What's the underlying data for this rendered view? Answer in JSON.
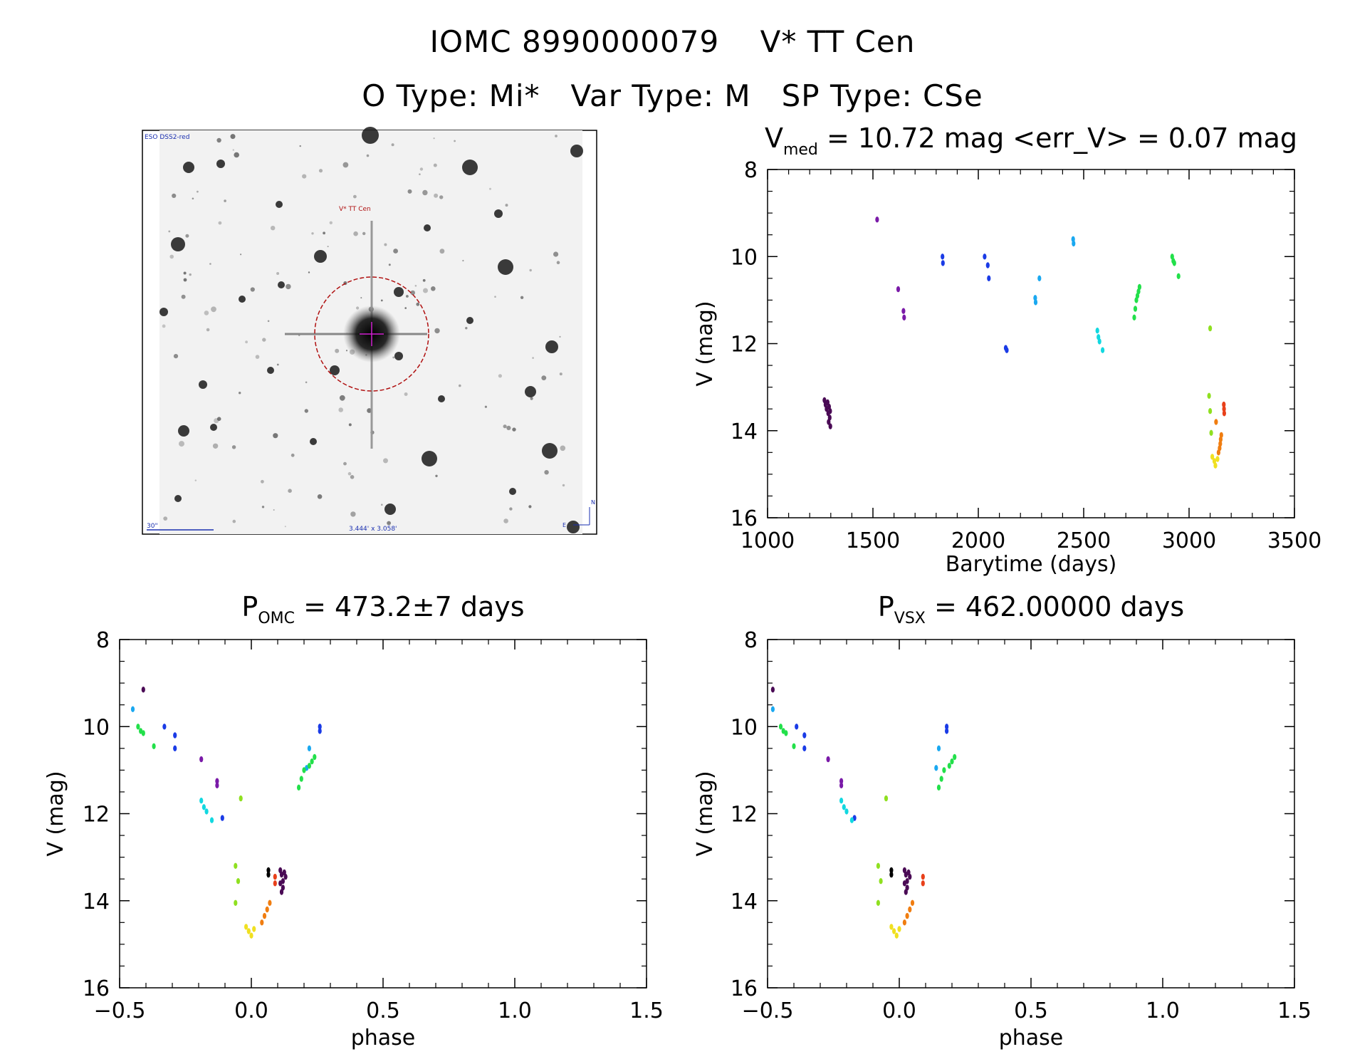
{
  "header": {
    "title_line1": "IOMC 8990000079    V* TT Cen",
    "title_line2": "O Type: Mi*   Var Type: M   SP Type: CSe"
  },
  "thumbnail": {
    "survey_label": "ESO DSS2-red",
    "target_label": "V* TT Cen",
    "scale_label": "30\"",
    "size_label": "3.444' x 3.058'",
    "north_label": "N",
    "east_label": "E"
  },
  "colors": {
    "purple_dark": "#4a0a55",
    "purple": "#7a1aa8",
    "blue": "#1a3be6",
    "sky": "#1aa8f0",
    "cyan": "#12d8e0",
    "green": "#22e04a",
    "lime": "#8fe020",
    "yellow": "#f0e020",
    "orange": "#f07d10",
    "red": "#e8401a",
    "black": "#000000"
  },
  "chart_data": [
    {
      "id": "lightcurve",
      "type": "scatter",
      "title_main": "V",
      "title_sub": "med",
      "title_rest": " = 10.72 mag <err_V> = 0.07 mag",
      "xlabel": "Barytime (days)",
      "ylabel": "V (mag)",
      "xlim": [
        1000,
        3500
      ],
      "ylim": [
        16,
        8
      ],
      "xticks": [
        "1000",
        "1500",
        "2000",
        "2500",
        "3000",
        "3500"
      ],
      "yticks": [
        "8",
        "10",
        "12",
        "14",
        "16"
      ],
      "groups": [
        {
          "color": "purple_dark",
          "points": [
            [
              1270,
              13.3
            ],
            [
              1275,
              13.4
            ],
            [
              1280,
              13.5
            ],
            [
              1285,
              13.35
            ],
            [
              1288,
              13.6
            ],
            [
              1290,
              13.8
            ],
            [
              1292,
              13.45
            ],
            [
              1295,
              13.7
            ],
            [
              1297,
              13.55
            ],
            [
              1298,
              13.9
            ]
          ]
        },
        {
          "color": "purple",
          "points": [
            [
              1520,
              9.15
            ],
            [
              1620,
              10.75
            ],
            [
              1645,
              11.25
            ],
            [
              1648,
              11.4
            ]
          ]
        },
        {
          "color": "blue",
          "points": [
            [
              1830,
              10.0
            ],
            [
              1832,
              10.15
            ],
            [
              2030,
              10.0
            ],
            [
              2045,
              10.2
            ],
            [
              2050,
              10.5
            ],
            [
              2130,
              12.1
            ],
            [
              2135,
              12.15
            ]
          ]
        },
        {
          "color": "sky",
          "points": [
            [
              2270,
              10.95
            ],
            [
              2272,
              11.05
            ],
            [
              2290,
              10.5
            ],
            [
              2450,
              9.6
            ],
            [
              2452,
              9.7
            ]
          ]
        },
        {
          "color": "cyan",
          "points": [
            [
              2565,
              11.7
            ],
            [
              2570,
              11.85
            ],
            [
              2575,
              11.95
            ],
            [
              2590,
              12.15
            ]
          ]
        },
        {
          "color": "green",
          "points": [
            [
              2740,
              11.4
            ],
            [
              2745,
              11.2
            ],
            [
              2750,
              11.0
            ],
            [
              2755,
              10.9
            ],
            [
              2760,
              10.8
            ],
            [
              2765,
              10.7
            ],
            [
              2920,
              10.0
            ],
            [
              2925,
              10.1
            ],
            [
              2930,
              10.15
            ],
            [
              2950,
              10.45
            ]
          ]
        },
        {
          "color": "lime",
          "points": [
            [
              3100,
              11.65
            ],
            [
              3095,
              13.2
            ],
            [
              3100,
              13.55
            ],
            [
              3105,
              14.05
            ]
          ]
        },
        {
          "color": "yellow",
          "points": [
            [
              3110,
              14.6
            ],
            [
              3120,
              14.7
            ],
            [
              3125,
              14.8
            ],
            [
              3135,
              14.65
            ]
          ]
        },
        {
          "color": "orange",
          "points": [
            [
              3140,
              14.5
            ],
            [
              3145,
              14.4
            ],
            [
              3148,
              14.3
            ],
            [
              3150,
              14.2
            ],
            [
              3153,
              14.1
            ],
            [
              3128,
              13.8
            ]
          ]
        },
        {
          "color": "red",
          "points": [
            [
              3165,
              13.4
            ],
            [
              3166,
              13.5
            ],
            [
              3167,
              13.6
            ]
          ]
        }
      ]
    },
    {
      "id": "phase_omc",
      "type": "scatter",
      "title_main": "P",
      "title_sub": "OMC",
      "title_rest": " = 473.2±7 days",
      "xlabel": "phase",
      "ylabel": "V (mag)",
      "xlim": [
        -0.5,
        1.5
      ],
      "ylim": [
        16,
        8
      ],
      "xticks": [
        "−0.5",
        "0.0",
        "0.5",
        "1.0",
        "1.5"
      ],
      "yticks": [
        "8",
        "10",
        "12",
        "14",
        "16"
      ],
      "groups": [
        {
          "color": "purple_dark",
          "points": [
            [
              -0.41,
              9.15
            ],
            [
              0.11,
              13.3
            ],
            [
              0.115,
              13.4
            ],
            [
              0.12,
              13.55
            ],
            [
              0.125,
              13.35
            ],
            [
              0.12,
              13.7
            ],
            [
              0.115,
              13.8
            ],
            [
              0.13,
              13.45
            ],
            [
              0.11,
              13.6
            ]
          ]
        },
        {
          "color": "purple",
          "points": [
            [
              -0.19,
              10.75
            ],
            [
              -0.13,
              11.25
            ],
            [
              -0.13,
              11.35
            ]
          ]
        },
        {
          "color": "blue",
          "points": [
            [
              -0.33,
              10.0
            ],
            [
              -0.29,
              10.2
            ],
            [
              -0.29,
              10.5
            ],
            [
              -0.11,
              12.1
            ],
            [
              0.26,
              10.0
            ],
            [
              0.26,
              10.1
            ]
          ]
        },
        {
          "color": "sky",
          "points": [
            [
              -0.45,
              9.6
            ],
            [
              0.21,
              10.95
            ],
            [
              0.22,
              10.5
            ]
          ]
        },
        {
          "color": "cyan",
          "points": [
            [
              -0.19,
              11.7
            ],
            [
              -0.18,
              11.85
            ],
            [
              -0.17,
              11.95
            ],
            [
              -0.15,
              12.15
            ]
          ]
        },
        {
          "color": "green",
          "points": [
            [
              -0.43,
              10.0
            ],
            [
              -0.42,
              10.1
            ],
            [
              -0.41,
              10.15
            ],
            [
              -0.37,
              10.45
            ],
            [
              0.18,
              11.4
            ],
            [
              0.19,
              11.2
            ],
            [
              0.2,
              11.0
            ],
            [
              0.22,
              10.9
            ],
            [
              0.23,
              10.8
            ],
            [
              0.24,
              10.7
            ]
          ]
        },
        {
          "color": "lime",
          "points": [
            [
              -0.04,
              11.65
            ],
            [
              -0.06,
              13.2
            ],
            [
              -0.05,
              13.55
            ],
            [
              -0.06,
              14.05
            ]
          ]
        },
        {
          "color": "yellow",
          "points": [
            [
              -0.02,
              14.6
            ],
            [
              -0.01,
              14.7
            ],
            [
              0.0,
              14.8
            ],
            [
              0.01,
              14.65
            ]
          ]
        },
        {
          "color": "orange",
          "points": [
            [
              0.04,
              14.5
            ],
            [
              0.05,
              14.35
            ],
            [
              0.06,
              14.2
            ],
            [
              0.07,
              14.05
            ]
          ]
        },
        {
          "color": "red",
          "points": [
            [
              0.09,
              13.45
            ],
            [
              0.09,
              13.6
            ]
          ]
        },
        {
          "color": "black",
          "points": [
            [
              0.065,
              13.3
            ],
            [
              0.065,
              13.4
            ]
          ]
        }
      ]
    },
    {
      "id": "phase_vsx",
      "type": "scatter",
      "title_main": "P",
      "title_sub": "VSX",
      "title_rest": " = 462.00000 days",
      "xlabel": "phase",
      "ylabel": "V (mag)",
      "xlim": [
        -0.5,
        1.5
      ],
      "ylim": [
        16,
        8
      ],
      "xticks": [
        "−0.5",
        "0.0",
        "0.5",
        "1.0",
        "1.5"
      ],
      "yticks": [
        "8",
        "10",
        "12",
        "14",
        "16"
      ],
      "groups": [
        {
          "color": "purple_dark",
          "points": [
            [
              -0.48,
              9.15
            ],
            [
              0.02,
              13.3
            ],
            [
              0.025,
              13.4
            ],
            [
              0.03,
              13.55
            ],
            [
              0.035,
              13.35
            ],
            [
              0.03,
              13.7
            ],
            [
              0.025,
              13.8
            ],
            [
              0.04,
              13.45
            ],
            [
              0.02,
              13.6
            ]
          ]
        },
        {
          "color": "purple",
          "points": [
            [
              -0.27,
              10.75
            ],
            [
              -0.22,
              11.25
            ],
            [
              -0.22,
              11.35
            ]
          ]
        },
        {
          "color": "blue",
          "points": [
            [
              -0.39,
              10.0
            ],
            [
              -0.36,
              10.2
            ],
            [
              -0.36,
              10.5
            ],
            [
              -0.17,
              12.1
            ],
            [
              0.18,
              10.0
            ],
            [
              0.18,
              10.1
            ]
          ]
        },
        {
          "color": "sky",
          "points": [
            [
              -0.48,
              9.6
            ],
            [
              0.14,
              10.95
            ],
            [
              0.15,
              10.5
            ]
          ]
        },
        {
          "color": "cyan",
          "points": [
            [
              -0.22,
              11.7
            ],
            [
              -0.21,
              11.85
            ],
            [
              -0.2,
              11.95
            ],
            [
              -0.18,
              12.15
            ]
          ]
        },
        {
          "color": "green",
          "points": [
            [
              -0.45,
              10.0
            ],
            [
              -0.44,
              10.1
            ],
            [
              -0.43,
              10.15
            ],
            [
              -0.4,
              10.45
            ],
            [
              0.15,
              11.4
            ],
            [
              0.16,
              11.2
            ],
            [
              0.17,
              11.0
            ],
            [
              0.19,
              10.9
            ],
            [
              0.2,
              10.8
            ],
            [
              0.21,
              10.7
            ]
          ]
        },
        {
          "color": "lime",
          "points": [
            [
              -0.05,
              11.65
            ],
            [
              -0.08,
              13.2
            ],
            [
              -0.07,
              13.55
            ],
            [
              -0.08,
              14.05
            ]
          ]
        },
        {
          "color": "yellow",
          "points": [
            [
              -0.03,
              14.6
            ],
            [
              -0.02,
              14.7
            ],
            [
              -0.01,
              14.8
            ],
            [
              0.0,
              14.65
            ]
          ]
        },
        {
          "color": "orange",
          "points": [
            [
              0.02,
              14.5
            ],
            [
              0.03,
              14.35
            ],
            [
              0.04,
              14.2
            ],
            [
              0.05,
              14.05
            ]
          ]
        },
        {
          "color": "red",
          "points": [
            [
              0.09,
              13.45
            ],
            [
              0.09,
              13.6
            ]
          ]
        },
        {
          "color": "black",
          "points": [
            [
              -0.03,
              13.3
            ],
            [
              -0.03,
              13.4
            ]
          ]
        }
      ]
    }
  ]
}
